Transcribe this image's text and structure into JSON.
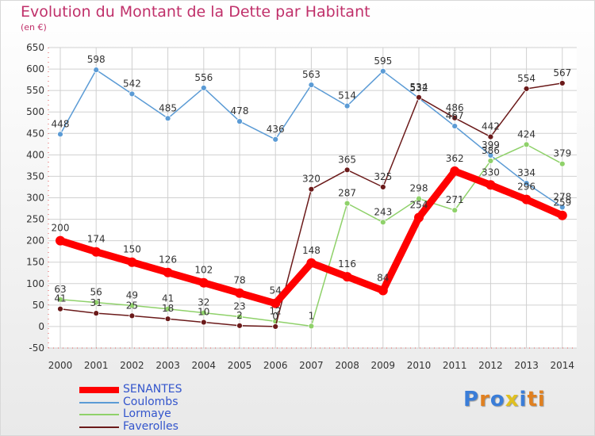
{
  "title": "Evolution du Montant de la Dette par Habitant",
  "unit": "(en €)",
  "logo": "Proxiti",
  "chart_data": {
    "type": "line",
    "x": [
      "2000",
      "2001",
      "2002",
      "2003",
      "2004",
      "2005",
      "2006",
      "2007",
      "2008",
      "2009",
      "2010",
      "2011",
      "2012",
      "2013",
      "2014"
    ],
    "ylim": [
      -50,
      650
    ],
    "yticks": [
      -50,
      0,
      50,
      100,
      150,
      200,
      250,
      300,
      350,
      400,
      450,
      500,
      550,
      600,
      650
    ],
    "grid": true,
    "legend_position": "bottom-left",
    "series": [
      {
        "name": "SENANTES",
        "color": "#ff0000",
        "values": [
          200,
          174,
          150,
          126,
          102,
          78,
          54,
          148,
          116,
          84,
          254,
          362,
          330,
          296,
          259
        ]
      },
      {
        "name": "Coulombs",
        "color": "#5b9bd5",
        "values": [
          448,
          598,
          542,
          485,
          556,
          478,
          436,
          563,
          514,
          595,
          532,
          467,
          399,
          334,
          278
        ]
      },
      {
        "name": "Lormaye",
        "color": "#8fd16a",
        "values": [
          63,
          56,
          49,
          41,
          32,
          23,
          12,
          1,
          287,
          243,
          298,
          271,
          386,
          424,
          379
        ]
      },
      {
        "name": "Faverolles",
        "color": "#6b1a1a",
        "values": [
          41,
          31,
          25,
          18,
          10,
          2,
          0,
          320,
          365,
          325,
          534,
          486,
          442,
          554,
          567
        ]
      }
    ]
  }
}
